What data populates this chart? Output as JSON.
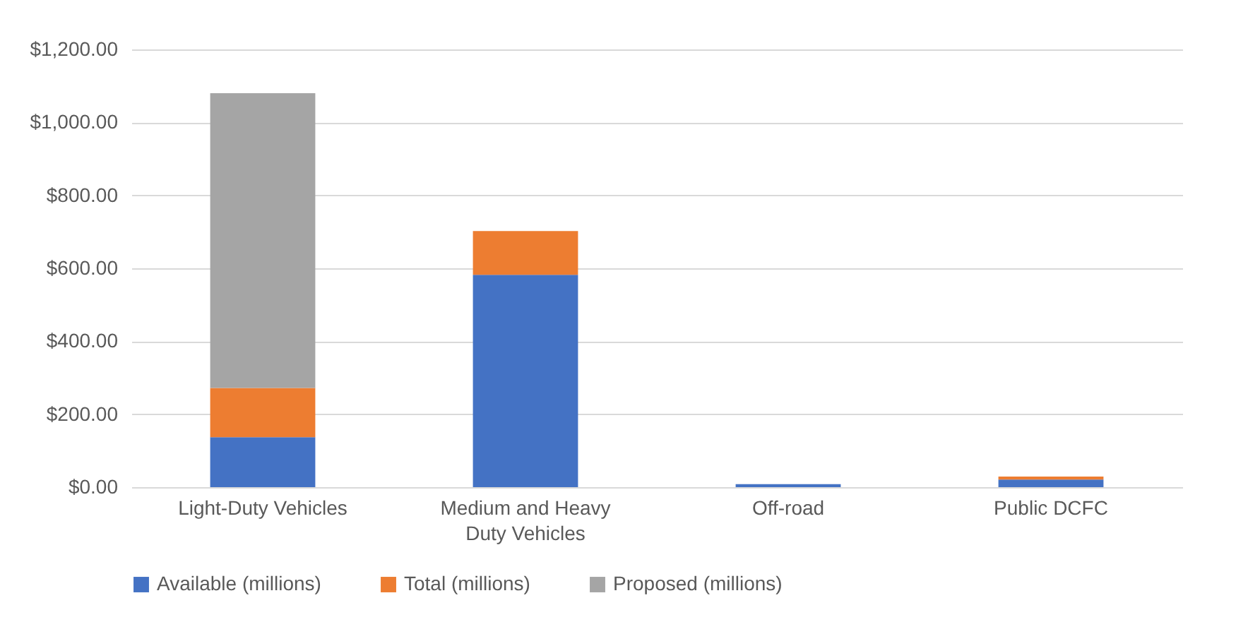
{
  "chart_data": {
    "type": "bar",
    "stacked": true,
    "categories": [
      "Light-Duty Vehicles",
      "Medium and Heavy Duty Vehicles",
      "Off-road",
      "Public DCFC"
    ],
    "series": [
      {
        "name": "Available (millions)",
        "color": "#4472c4",
        "values": [
          137,
          582,
          8,
          21
        ]
      },
      {
        "name": "Total (millions)",
        "color": "#ed7d31",
        "values": [
          135,
          120,
          0,
          8
        ]
      },
      {
        "name": "Proposed (millions)",
        "color": "#a5a5a5",
        "values": [
          808,
          0,
          0,
          0
        ]
      }
    ],
    "ylim": [
      0,
      1200
    ],
    "yticks": [
      {
        "value": 0,
        "label": "$0.00"
      },
      {
        "value": 200,
        "label": "$200.00"
      },
      {
        "value": 400,
        "label": "$400.00"
      },
      {
        "value": 600,
        "label": "$600.00"
      },
      {
        "value": 800,
        "label": "$800.00"
      },
      {
        "value": 1000,
        "label": "$1,000.00"
      },
      {
        "value": 1200,
        "label": "$1,200.00"
      }
    ],
    "grid": "y",
    "legend": "bottom"
  }
}
